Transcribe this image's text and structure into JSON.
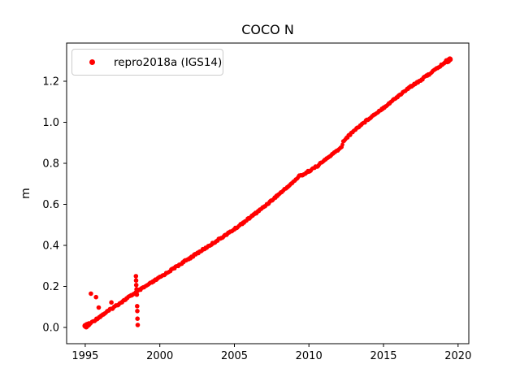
{
  "figure": {
    "background": "#ffffff",
    "text_color": "#000000",
    "frame_color": "#000000"
  },
  "chart_data": {
    "type": "scatter",
    "title": "COCO N",
    "xlabel": "",
    "ylabel": "m",
    "grid": false,
    "marker_color": "#ff0000",
    "xlim": [
      1993.75,
      2020.72
    ],
    "ylim": [
      -0.079,
      1.386
    ],
    "xticks": [
      1995,
      2000,
      2005,
      2010,
      2015,
      2020
    ],
    "yticks": [
      0.0,
      0.2,
      0.4,
      0.6,
      0.8,
      1.0,
      1.2
    ],
    "legend": {
      "position": "upper-left",
      "entries": [
        {
          "label": "repro2018a (IGS14)",
          "marker": "dot",
          "color": "#ff0000"
        }
      ]
    },
    "series": [
      {
        "name": "repro2018a (IGS14)",
        "description": "Dense daily GNSS north-component positions; near-linear drift of ~0.053 m/yr from 0.0 m in 1995.0 to ~1.31 m in 2019.5, with a small offset (~+0.03 m) near 2012.2 and a slight bump near 2009.35.",
        "trend_points": [
          [
            1995.0,
            0.004
          ],
          [
            1995.5,
            0.028
          ],
          [
            1996.0,
            0.054
          ],
          [
            1997.0,
            0.103
          ],
          [
            1998.0,
            0.152
          ],
          [
            1998.42,
            0.172
          ],
          [
            1999.0,
            0.198
          ],
          [
            2000.0,
            0.244
          ],
          [
            2001.0,
            0.291
          ],
          [
            2002.0,
            0.338
          ],
          [
            2003.0,
            0.384
          ],
          [
            2004.0,
            0.431
          ],
          [
            2005.0,
            0.479
          ],
          [
            2006.0,
            0.533
          ],
          [
            2007.0,
            0.589
          ],
          [
            2008.0,
            0.65
          ],
          [
            2009.0,
            0.712
          ],
          [
            2009.35,
            0.738
          ],
          [
            2009.7,
            0.748
          ],
          [
            2010.0,
            0.762
          ],
          [
            2010.5,
            0.784
          ],
          [
            2011.0,
            0.812
          ],
          [
            2011.5,
            0.84
          ],
          [
            2012.0,
            0.868
          ],
          [
            2012.2,
            0.878
          ],
          [
            2012.3,
            0.908
          ],
          [
            2013.0,
            0.958
          ],
          [
            2013.5,
            0.988
          ],
          [
            2014.0,
            1.017
          ],
          [
            2015.0,
            1.071
          ],
          [
            2016.0,
            1.128
          ],
          [
            2017.0,
            1.184
          ],
          [
            2017.5,
            1.205
          ],
          [
            2018.0,
            1.232
          ],
          [
            2018.5,
            1.258
          ],
          [
            2019.0,
            1.285
          ],
          [
            2019.45,
            1.307
          ]
        ],
        "outliers": [
          [
            1995.38,
            0.165
          ],
          [
            1995.72,
            0.148
          ],
          [
            1995.9,
            0.097
          ],
          [
            1996.75,
            0.122
          ],
          [
            1998.4,
            0.25
          ],
          [
            1998.41,
            0.229
          ],
          [
            1998.42,
            0.207
          ],
          [
            1998.44,
            0.186
          ],
          [
            1998.46,
            0.16
          ],
          [
            1998.48,
            0.104
          ],
          [
            1998.49,
            0.08
          ],
          [
            1998.5,
            0.043
          ],
          [
            1998.52,
            0.012
          ]
        ]
      }
    ]
  }
}
